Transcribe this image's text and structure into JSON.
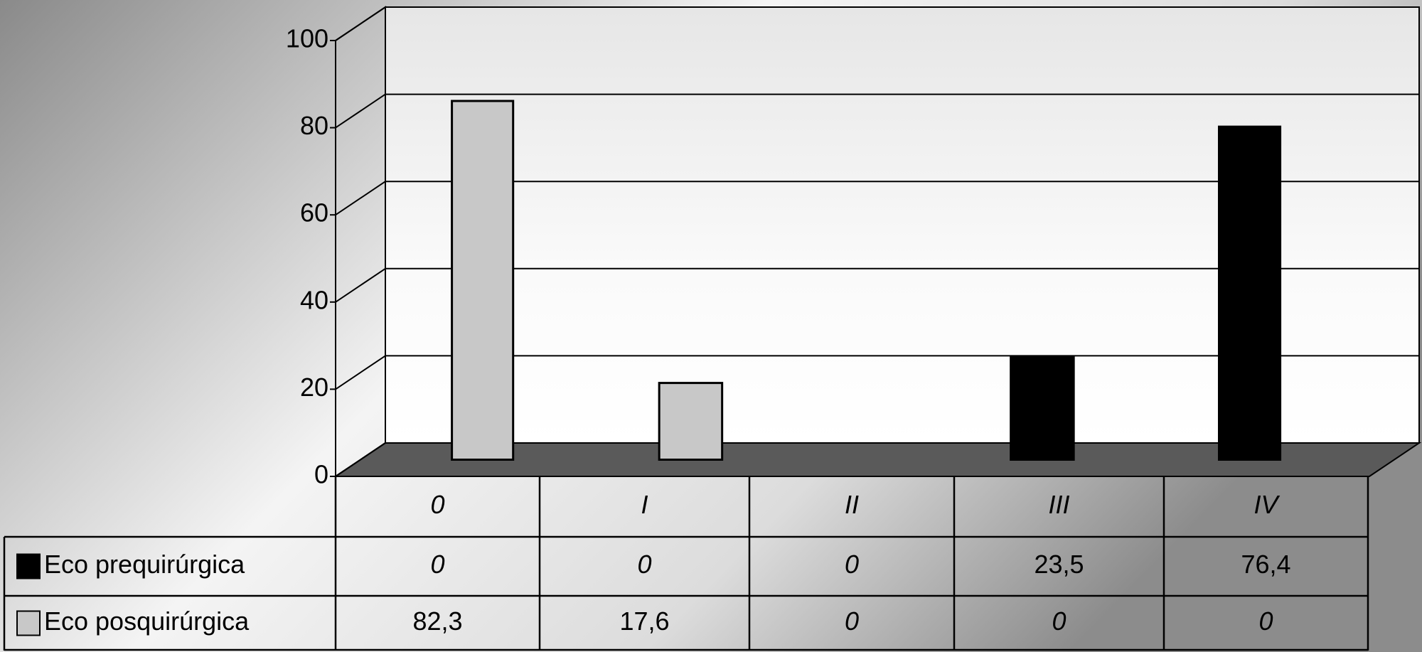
{
  "chart_data": {
    "type": "bar",
    "categories": [
      "0",
      "I",
      "II",
      "III",
      "IV"
    ],
    "series": [
      {
        "name": "Eco prequirúrgica",
        "color": "#000000",
        "values": [
          0,
          0,
          0,
          23.5,
          76.4
        ],
        "value_labels": [
          "0",
          "0",
          "0",
          "23,5",
          "76,4"
        ]
      },
      {
        "name": "Eco posquirúrgica",
        "color": "#c8c8c8",
        "values": [
          82.3,
          17.6,
          0,
          0,
          0
        ],
        "value_labels": [
          "82,3",
          "17,6",
          "0",
          "0",
          "0"
        ]
      }
    ],
    "ylim": [
      0,
      100
    ],
    "yticks": [
      0,
      20,
      40,
      60,
      80,
      100
    ],
    "grid": true
  }
}
